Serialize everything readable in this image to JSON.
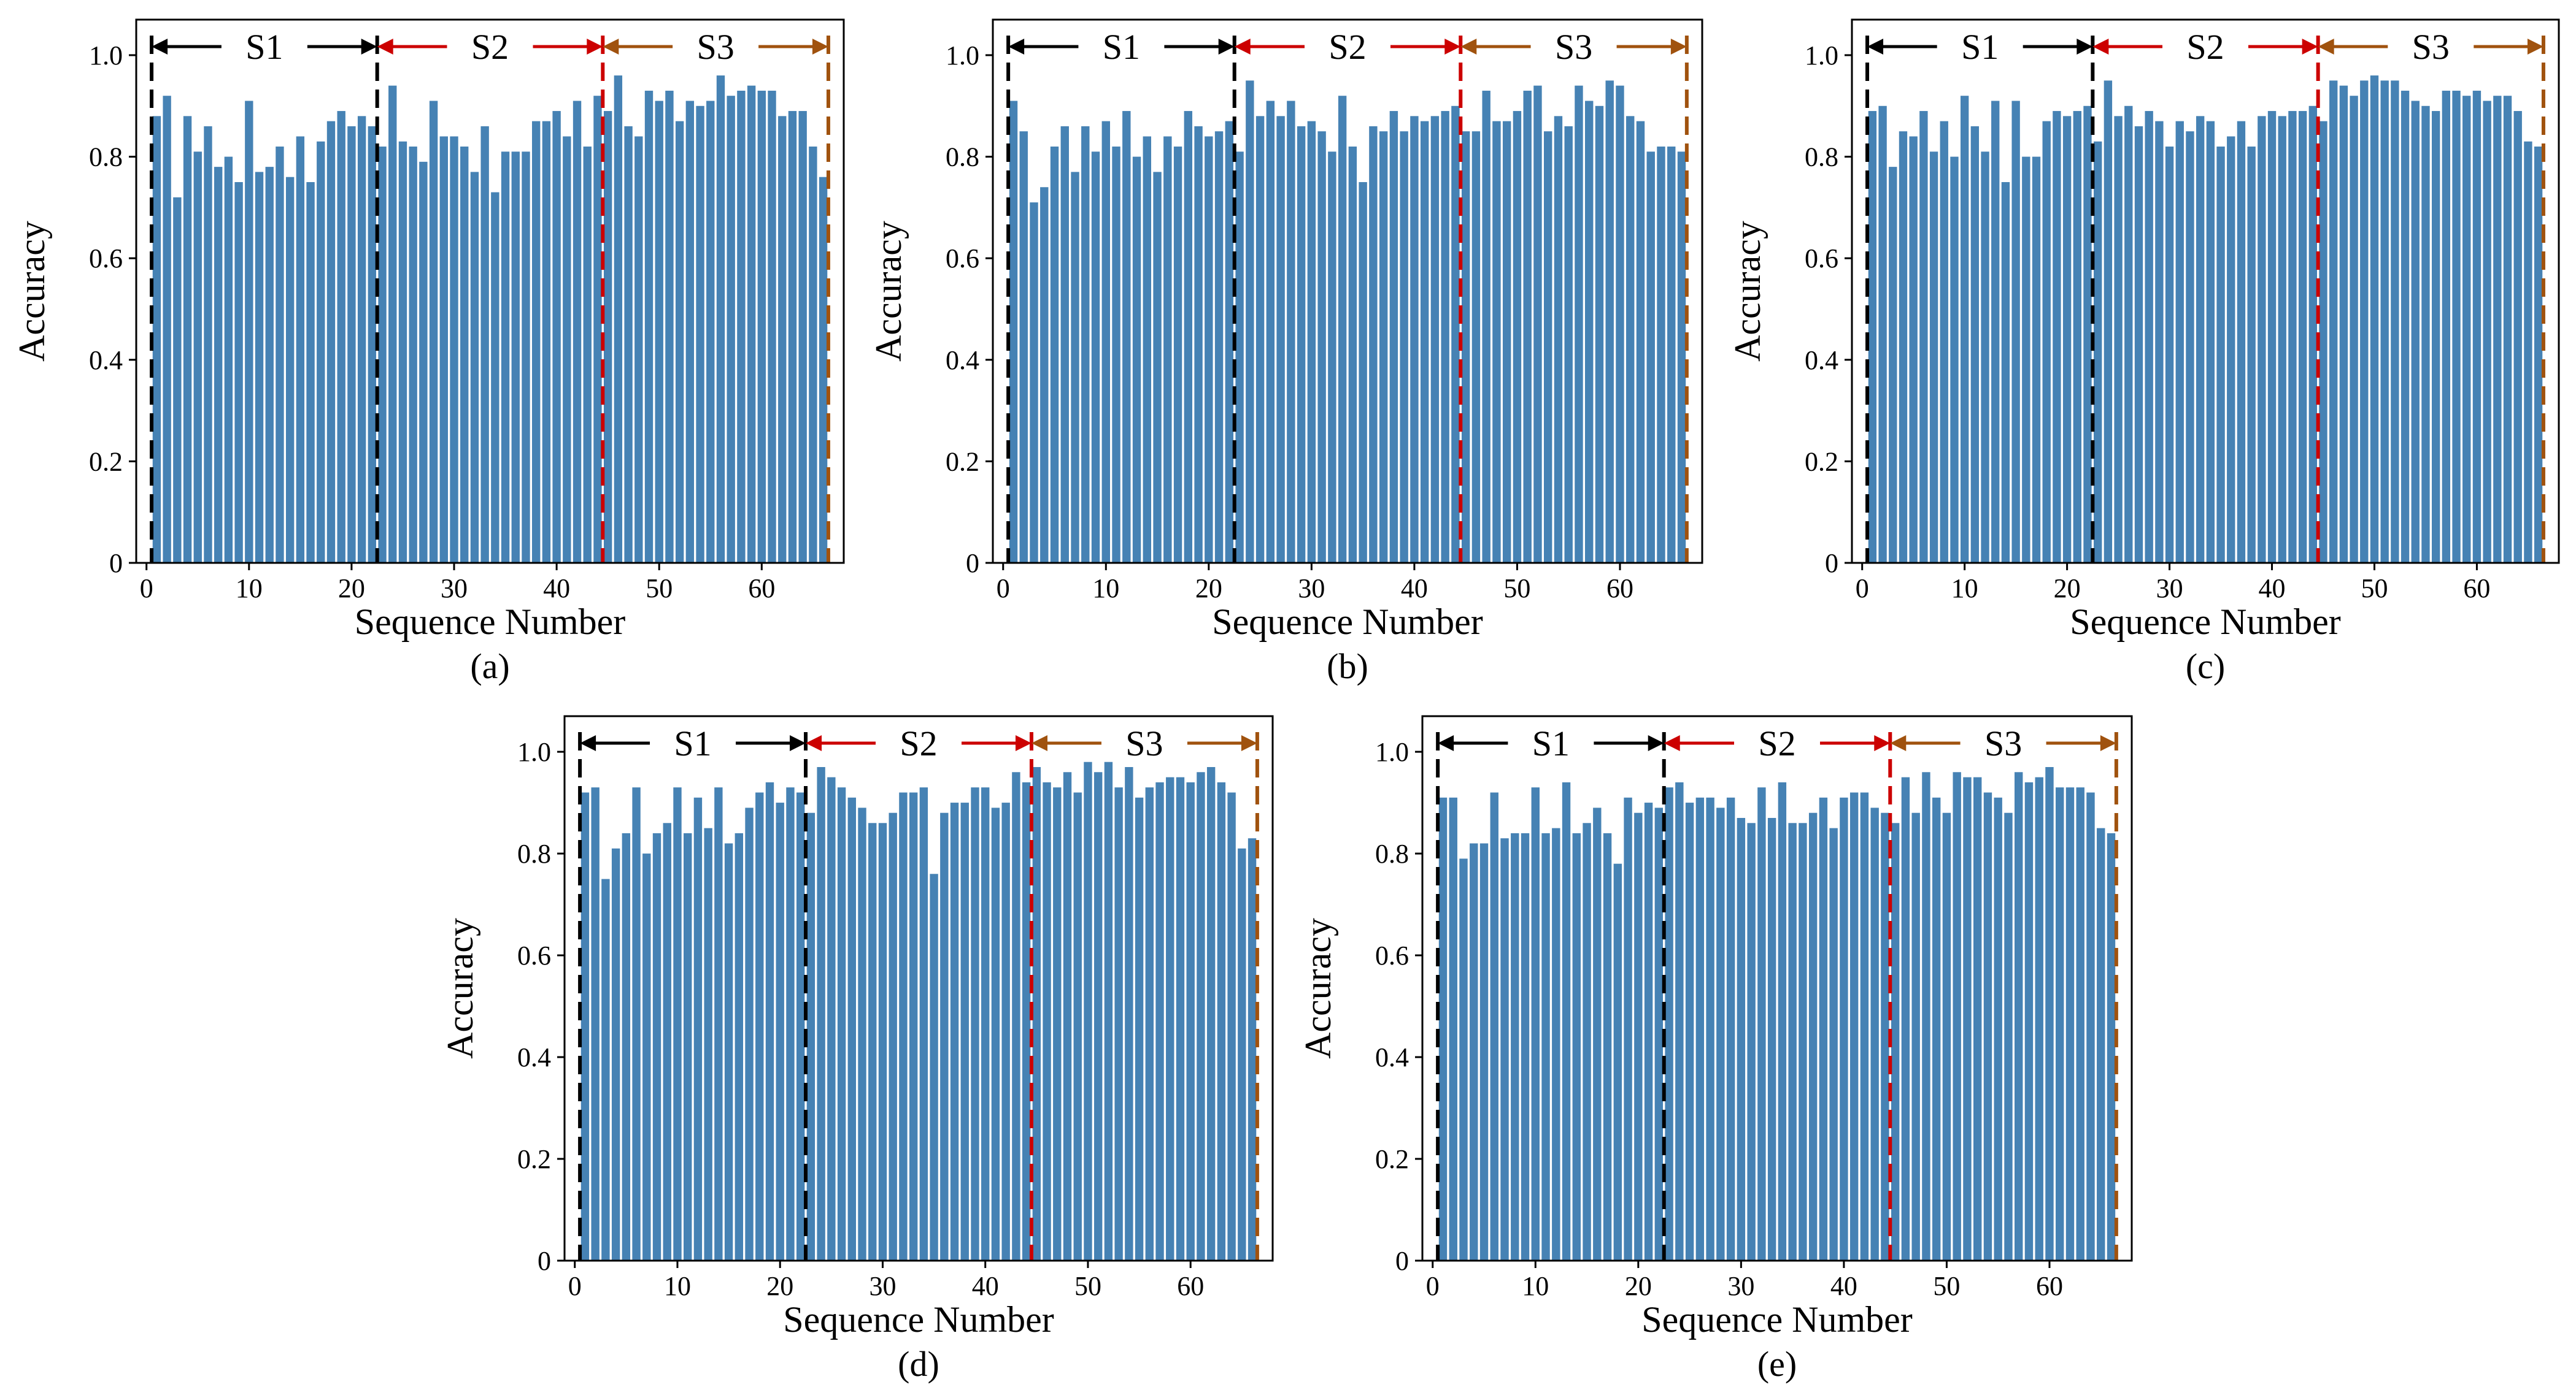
{
  "figure": {
    "accent_bar_color": "#4682B4",
    "segment_colors": {
      "S1": "#000000",
      "S2": "#CC0000",
      "S3": "#A0520E"
    }
  },
  "chart_data": [
    {
      "type": "bar",
      "caption": "(a)",
      "xlabel": "Sequence Number",
      "ylabel": "Accuracy",
      "xlim": [
        -1,
        68
      ],
      "ylim": [
        0,
        1.07
      ],
      "xticks": [
        0,
        10,
        20,
        30,
        40,
        50,
        60
      ],
      "yticks": [
        0,
        0.2,
        0.4,
        0.6,
        0.8,
        1.0
      ],
      "ytick_labels": [
        "0",
        "0.2",
        "0.4",
        "0.6",
        "0.8",
        "1.0"
      ],
      "segments": [
        {
          "label": "S1",
          "start": 0.5,
          "end": 22.5
        },
        {
          "label": "S2",
          "start": 22.5,
          "end": 44.5
        },
        {
          "label": "S3",
          "start": 44.5,
          "end": 66.5
        }
      ],
      "x": [
        1,
        2,
        3,
        4,
        5,
        6,
        7,
        8,
        9,
        10,
        11,
        12,
        13,
        14,
        15,
        16,
        17,
        18,
        19,
        20,
        21,
        22,
        23,
        24,
        25,
        26,
        27,
        28,
        29,
        30,
        31,
        32,
        33,
        34,
        35,
        36,
        37,
        38,
        39,
        40,
        41,
        42,
        43,
        44,
        45,
        46,
        47,
        48,
        49,
        50,
        51,
        52,
        53,
        54,
        55,
        56,
        57,
        58,
        59,
        60,
        61,
        62,
        63,
        64,
        65,
        66
      ],
      "values": [
        0.88,
        0.92,
        0.72,
        0.88,
        0.81,
        0.86,
        0.78,
        0.8,
        0.75,
        0.91,
        0.77,
        0.78,
        0.82,
        0.76,
        0.84,
        0.75,
        0.83,
        0.87,
        0.89,
        0.86,
        0.88,
        0.86,
        0.82,
        0.94,
        0.83,
        0.82,
        0.79,
        0.91,
        0.84,
        0.84,
        0.82,
        0.77,
        0.86,
        0.73,
        0.81,
        0.81,
        0.81,
        0.87,
        0.87,
        0.89,
        0.84,
        0.91,
        0.82,
        0.92,
        0.89,
        0.96,
        0.86,
        0.84,
        0.93,
        0.91,
        0.93,
        0.87,
        0.91,
        0.9,
        0.91,
        0.96,
        0.92,
        0.93,
        0.94,
        0.93,
        0.93,
        0.88,
        0.89,
        0.89,
        0.82,
        0.76
      ]
    },
    {
      "type": "bar",
      "caption": "(b)",
      "xlabel": "Sequence Number",
      "ylabel": "Accuracy",
      "xlim": [
        -1,
        68
      ],
      "ylim": [
        0,
        1.07
      ],
      "xticks": [
        0,
        10,
        20,
        30,
        40,
        50,
        60
      ],
      "yticks": [
        0,
        0.2,
        0.4,
        0.6,
        0.8,
        1.0
      ],
      "ytick_labels": [
        "0",
        "0.2",
        "0.4",
        "0.6",
        "0.8",
        "1.0"
      ],
      "segments": [
        {
          "label": "S1",
          "start": 0.5,
          "end": 22.5
        },
        {
          "label": "S2",
          "start": 22.5,
          "end": 44.5
        },
        {
          "label": "S3",
          "start": 44.5,
          "end": 66.5
        }
      ],
      "x": [
        1,
        2,
        3,
        4,
        5,
        6,
        7,
        8,
        9,
        10,
        11,
        12,
        13,
        14,
        15,
        16,
        17,
        18,
        19,
        20,
        21,
        22,
        23,
        24,
        25,
        26,
        27,
        28,
        29,
        30,
        31,
        32,
        33,
        34,
        35,
        36,
        37,
        38,
        39,
        40,
        41,
        42,
        43,
        44,
        45,
        46,
        47,
        48,
        49,
        50,
        51,
        52,
        53,
        54,
        55,
        56,
        57,
        58,
        59,
        60,
        61,
        62,
        63,
        64,
        65,
        66
      ],
      "values": [
        0.91,
        0.85,
        0.71,
        0.74,
        0.82,
        0.86,
        0.77,
        0.86,
        0.81,
        0.87,
        0.82,
        0.89,
        0.8,
        0.84,
        0.77,
        0.84,
        0.82,
        0.89,
        0.86,
        0.84,
        0.85,
        0.87,
        0.81,
        0.95,
        0.88,
        0.91,
        0.88,
        0.91,
        0.86,
        0.87,
        0.85,
        0.81,
        0.92,
        0.82,
        0.75,
        0.86,
        0.85,
        0.89,
        0.85,
        0.88,
        0.87,
        0.88,
        0.89,
        0.9,
        0.85,
        0.85,
        0.93,
        0.87,
        0.87,
        0.89,
        0.93,
        0.94,
        0.85,
        0.88,
        0.86,
        0.94,
        0.91,
        0.9,
        0.95,
        0.94,
        0.88,
        0.87,
        0.81,
        0.82,
        0.82,
        0.81
      ]
    },
    {
      "type": "bar",
      "caption": "(c)",
      "xlabel": "Sequence Number",
      "ylabel": "Accuracy",
      "xlim": [
        -1,
        68
      ],
      "ylim": [
        0,
        1.07
      ],
      "xticks": [
        0,
        10,
        20,
        30,
        40,
        50,
        60
      ],
      "yticks": [
        0,
        0.2,
        0.4,
        0.6,
        0.8,
        1.0
      ],
      "ytick_labels": [
        "0",
        "0.2",
        "0.4",
        "0.6",
        "0.8",
        "1.0"
      ],
      "segments": [
        {
          "label": "S1",
          "start": 0.5,
          "end": 22.5
        },
        {
          "label": "S2",
          "start": 22.5,
          "end": 44.5
        },
        {
          "label": "S3",
          "start": 44.5,
          "end": 66.5
        }
      ],
      "x": [
        1,
        2,
        3,
        4,
        5,
        6,
        7,
        8,
        9,
        10,
        11,
        12,
        13,
        14,
        15,
        16,
        17,
        18,
        19,
        20,
        21,
        22,
        23,
        24,
        25,
        26,
        27,
        28,
        29,
        30,
        31,
        32,
        33,
        34,
        35,
        36,
        37,
        38,
        39,
        40,
        41,
        42,
        43,
        44,
        45,
        46,
        47,
        48,
        49,
        50,
        51,
        52,
        53,
        54,
        55,
        56,
        57,
        58,
        59,
        60,
        61,
        62,
        63,
        64,
        65,
        66
      ],
      "values": [
        0.89,
        0.9,
        0.78,
        0.85,
        0.84,
        0.89,
        0.81,
        0.87,
        0.8,
        0.92,
        0.86,
        0.81,
        0.91,
        0.75,
        0.91,
        0.8,
        0.8,
        0.87,
        0.89,
        0.88,
        0.89,
        0.9,
        0.83,
        0.95,
        0.88,
        0.9,
        0.86,
        0.89,
        0.87,
        0.82,
        0.87,
        0.85,
        0.88,
        0.87,
        0.82,
        0.84,
        0.87,
        0.82,
        0.88,
        0.89,
        0.88,
        0.89,
        0.89,
        0.9,
        0.87,
        0.95,
        0.94,
        0.92,
        0.95,
        0.96,
        0.95,
        0.95,
        0.93,
        0.91,
        0.9,
        0.89,
        0.93,
        0.93,
        0.92,
        0.93,
        0.91,
        0.92,
        0.92,
        0.89,
        0.83,
        0.82
      ]
    },
    {
      "type": "bar",
      "caption": "(d)",
      "xlabel": "Sequence Number",
      "ylabel": "Accuracy",
      "xlim": [
        -1,
        68
      ],
      "ylim": [
        0,
        1.07
      ],
      "xticks": [
        0,
        10,
        20,
        30,
        40,
        50,
        60
      ],
      "yticks": [
        0,
        0.2,
        0.4,
        0.6,
        0.8,
        1.0
      ],
      "ytick_labels": [
        "0",
        "0.2",
        "0.4",
        "0.6",
        "0.8",
        "1.0"
      ],
      "segments": [
        {
          "label": "S1",
          "start": 0.5,
          "end": 22.5
        },
        {
          "label": "S2",
          "start": 22.5,
          "end": 44.5
        },
        {
          "label": "S3",
          "start": 44.5,
          "end": 66.5
        }
      ],
      "x": [
        1,
        2,
        3,
        4,
        5,
        6,
        7,
        8,
        9,
        10,
        11,
        12,
        13,
        14,
        15,
        16,
        17,
        18,
        19,
        20,
        21,
        22,
        23,
        24,
        25,
        26,
        27,
        28,
        29,
        30,
        31,
        32,
        33,
        34,
        35,
        36,
        37,
        38,
        39,
        40,
        41,
        42,
        43,
        44,
        45,
        46,
        47,
        48,
        49,
        50,
        51,
        52,
        53,
        54,
        55,
        56,
        57,
        58,
        59,
        60,
        61,
        62,
        63,
        64,
        65,
        66
      ],
      "values": [
        0.92,
        0.93,
        0.75,
        0.81,
        0.84,
        0.93,
        0.8,
        0.84,
        0.86,
        0.93,
        0.84,
        0.91,
        0.85,
        0.93,
        0.82,
        0.84,
        0.89,
        0.92,
        0.94,
        0.9,
        0.93,
        0.92,
        0.88,
        0.97,
        0.95,
        0.93,
        0.91,
        0.89,
        0.86,
        0.86,
        0.88,
        0.92,
        0.92,
        0.93,
        0.76,
        0.88,
        0.9,
        0.9,
        0.93,
        0.93,
        0.89,
        0.9,
        0.96,
        0.94,
        0.97,
        0.94,
        0.93,
        0.96,
        0.92,
        0.98,
        0.96,
        0.98,
        0.93,
        0.97,
        0.91,
        0.93,
        0.94,
        0.95,
        0.95,
        0.94,
        0.96,
        0.97,
        0.94,
        0.92,
        0.81,
        0.83
      ]
    },
    {
      "type": "bar",
      "caption": "(e)",
      "xlabel": "Sequence Number",
      "ylabel": "Accuracy",
      "xlim": [
        -1,
        68
      ],
      "ylim": [
        0,
        1.07
      ],
      "xticks": [
        0,
        10,
        20,
        30,
        40,
        50,
        60
      ],
      "yticks": [
        0,
        0.2,
        0.4,
        0.6,
        0.8,
        1.0
      ],
      "ytick_labels": [
        "0",
        "0.2",
        "0.4",
        "0.6",
        "0.8",
        "1.0"
      ],
      "segments": [
        {
          "label": "S1",
          "start": 0.5,
          "end": 22.5
        },
        {
          "label": "S2",
          "start": 22.5,
          "end": 44.5
        },
        {
          "label": "S3",
          "start": 44.5,
          "end": 66.5
        }
      ],
      "x": [
        1,
        2,
        3,
        4,
        5,
        6,
        7,
        8,
        9,
        10,
        11,
        12,
        13,
        14,
        15,
        16,
        17,
        18,
        19,
        20,
        21,
        22,
        23,
        24,
        25,
        26,
        27,
        28,
        29,
        30,
        31,
        32,
        33,
        34,
        35,
        36,
        37,
        38,
        39,
        40,
        41,
        42,
        43,
        44,
        45,
        46,
        47,
        48,
        49,
        50,
        51,
        52,
        53,
        54,
        55,
        56,
        57,
        58,
        59,
        60,
        61,
        62,
        63,
        64,
        65,
        66
      ],
      "values": [
        0.91,
        0.91,
        0.79,
        0.82,
        0.82,
        0.92,
        0.83,
        0.84,
        0.84,
        0.93,
        0.84,
        0.85,
        0.94,
        0.84,
        0.86,
        0.89,
        0.84,
        0.78,
        0.91,
        0.88,
        0.9,
        0.89,
        0.93,
        0.94,
        0.9,
        0.91,
        0.91,
        0.89,
        0.91,
        0.87,
        0.86,
        0.93,
        0.87,
        0.94,
        0.86,
        0.86,
        0.88,
        0.91,
        0.85,
        0.91,
        0.92,
        0.92,
        0.89,
        0.88,
        0.86,
        0.95,
        0.88,
        0.96,
        0.91,
        0.88,
        0.96,
        0.95,
        0.95,
        0.92,
        0.91,
        0.88,
        0.96,
        0.94,
        0.95,
        0.97,
        0.93,
        0.93,
        0.93,
        0.92,
        0.85,
        0.84
      ]
    }
  ]
}
